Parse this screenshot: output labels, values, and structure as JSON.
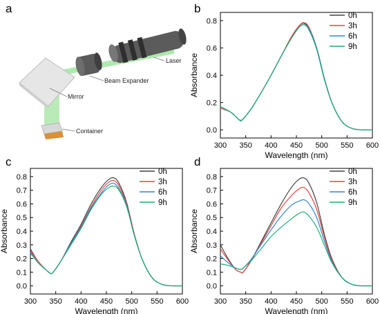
{
  "diagram": {
    "panel_label": "a",
    "labels": {
      "laser": "Laser",
      "beam_expander": "Beam Expander",
      "mirror": "Mirror",
      "container": "Container"
    },
    "colors": {
      "beam": "#9be39b",
      "container_liquid": "#d9903a"
    }
  },
  "chart_data": [
    {
      "panel": "b",
      "type": "line",
      "title": "",
      "xlabel": "Wavelength (nm)",
      "ylabel": "Absorbance",
      "xlim": [
        300,
        600
      ],
      "ylim": [
        -0.06,
        0.86
      ],
      "xticks": [
        300,
        350,
        400,
        450,
        500,
        550,
        600
      ],
      "yticks": [
        0.0,
        0.2,
        0.4,
        0.6,
        0.8
      ],
      "ytick_labels": [
        "0.0",
        "0.2",
        "0.4",
        "0.6",
        "0.8"
      ],
      "grid": false,
      "legend_position": "top-right",
      "series": [
        {
          "name": "0h",
          "color": "#404040",
          "x": [
            300,
            320,
            335,
            340,
            345,
            360,
            380,
            400,
            420,
            440,
            455,
            465,
            475,
            490,
            505,
            520,
            540,
            560,
            580,
            600
          ],
          "y": [
            0.16,
            0.13,
            0.08,
            0.07,
            0.08,
            0.15,
            0.27,
            0.4,
            0.54,
            0.68,
            0.76,
            0.78,
            0.74,
            0.6,
            0.38,
            0.2,
            0.06,
            0.01,
            0.0,
            0.0
          ]
        },
        {
          "name": "3h",
          "color": "#e8413f",
          "x": [
            300,
            320,
            335,
            340,
            345,
            360,
            380,
            400,
            420,
            440,
            455,
            465,
            475,
            490,
            505,
            520,
            540,
            560,
            580,
            600
          ],
          "y": [
            0.16,
            0.13,
            0.08,
            0.07,
            0.08,
            0.15,
            0.27,
            0.4,
            0.54,
            0.68,
            0.76,
            0.785,
            0.75,
            0.6,
            0.38,
            0.2,
            0.06,
            0.01,
            0.0,
            0.0
          ]
        },
        {
          "name": "6h",
          "color": "#2f84d6",
          "x": [
            300,
            320,
            335,
            340,
            345,
            360,
            380,
            400,
            420,
            440,
            455,
            465,
            475,
            490,
            505,
            520,
            540,
            560,
            580,
            600
          ],
          "y": [
            0.17,
            0.13,
            0.08,
            0.07,
            0.08,
            0.15,
            0.27,
            0.4,
            0.54,
            0.67,
            0.75,
            0.77,
            0.74,
            0.6,
            0.38,
            0.2,
            0.06,
            0.01,
            0.0,
            0.0
          ]
        },
        {
          "name": "9h",
          "color": "#1fae74",
          "x": [
            300,
            320,
            335,
            340,
            345,
            360,
            380,
            400,
            420,
            440,
            455,
            465,
            475,
            490,
            505,
            520,
            540,
            560,
            580,
            600
          ],
          "y": [
            0.17,
            0.13,
            0.08,
            0.065,
            0.08,
            0.15,
            0.27,
            0.4,
            0.54,
            0.67,
            0.75,
            0.77,
            0.73,
            0.59,
            0.37,
            0.2,
            0.06,
            0.01,
            0.0,
            0.0
          ]
        }
      ]
    },
    {
      "panel": "c",
      "type": "line",
      "title": "",
      "xlabel": "Wavelength (nm)",
      "ylabel": "Absorbance",
      "xlim": [
        300,
        600
      ],
      "ylim": [
        -0.06,
        0.86
      ],
      "xticks": [
        300,
        350,
        400,
        450,
        500,
        550,
        600
      ],
      "yticks": [
        0.0,
        0.1,
        0.2,
        0.3,
        0.4,
        0.5,
        0.6,
        0.7,
        0.8
      ],
      "ytick_labels": [
        "0.0",
        "0.1",
        "0.2",
        "0.3",
        "0.4",
        "0.5",
        "0.6",
        "0.7",
        "0.8"
      ],
      "grid": false,
      "legend_position": "top-right",
      "series": [
        {
          "name": "0h",
          "color": "#404040",
          "x": [
            300,
            315,
            330,
            340,
            345,
            360,
            380,
            400,
            420,
            440,
            455,
            465,
            475,
            490,
            505,
            520,
            540,
            560,
            580,
            600
          ],
          "y": [
            0.27,
            0.18,
            0.12,
            0.09,
            0.1,
            0.18,
            0.32,
            0.45,
            0.6,
            0.72,
            0.78,
            0.79,
            0.75,
            0.61,
            0.38,
            0.2,
            0.06,
            0.01,
            0.0,
            0.0
          ]
        },
        {
          "name": "3h",
          "color": "#e8413f",
          "x": [
            300,
            315,
            330,
            340,
            345,
            360,
            380,
            400,
            420,
            440,
            455,
            465,
            475,
            490,
            505,
            520,
            540,
            560,
            580,
            600
          ],
          "y": [
            0.26,
            0.18,
            0.12,
            0.09,
            0.1,
            0.18,
            0.31,
            0.44,
            0.58,
            0.7,
            0.76,
            0.77,
            0.73,
            0.6,
            0.38,
            0.2,
            0.06,
            0.01,
            0.0,
            0.0
          ]
        },
        {
          "name": "6h",
          "color": "#2f84d6",
          "x": [
            300,
            315,
            330,
            340,
            345,
            360,
            380,
            400,
            420,
            440,
            455,
            465,
            475,
            490,
            505,
            520,
            540,
            560,
            580,
            600
          ],
          "y": [
            0.25,
            0.17,
            0.12,
            0.09,
            0.1,
            0.18,
            0.31,
            0.43,
            0.57,
            0.68,
            0.74,
            0.75,
            0.71,
            0.59,
            0.37,
            0.2,
            0.06,
            0.01,
            0.0,
            0.0
          ]
        },
        {
          "name": "9h",
          "color": "#1fae74",
          "x": [
            300,
            315,
            330,
            340,
            345,
            360,
            380,
            400,
            420,
            440,
            455,
            465,
            475,
            490,
            505,
            520,
            540,
            560,
            580,
            600
          ],
          "y": [
            0.24,
            0.17,
            0.12,
            0.09,
            0.1,
            0.18,
            0.3,
            0.42,
            0.56,
            0.67,
            0.72,
            0.73,
            0.7,
            0.58,
            0.37,
            0.2,
            0.06,
            0.01,
            0.0,
            0.0
          ]
        }
      ]
    },
    {
      "panel": "d",
      "type": "line",
      "title": "",
      "xlabel": "Wavelength (nm)",
      "ylabel": "Absorbance",
      "xlim": [
        300,
        600
      ],
      "ylim": [
        -0.06,
        0.86
      ],
      "xticks": [
        300,
        350,
        400,
        450,
        500,
        550,
        600
      ],
      "yticks": [
        0.0,
        0.1,
        0.2,
        0.3,
        0.4,
        0.5,
        0.6,
        0.7,
        0.8
      ],
      "ytick_labels": [
        "0.0",
        "0.1",
        "0.2",
        "0.3",
        "0.4",
        "0.5",
        "0.6",
        "0.7",
        "0.8"
      ],
      "grid": false,
      "legend_position": "top-right",
      "series": [
        {
          "name": "0h",
          "color": "#404040",
          "x": [
            300,
            315,
            330,
            340,
            345,
            360,
            380,
            400,
            420,
            440,
            455,
            465,
            475,
            490,
            505,
            520,
            540,
            560,
            580,
            600
          ],
          "y": [
            0.3,
            0.2,
            0.12,
            0.1,
            0.1,
            0.18,
            0.32,
            0.46,
            0.6,
            0.72,
            0.78,
            0.79,
            0.75,
            0.61,
            0.38,
            0.2,
            0.06,
            0.01,
            0.0,
            0.0
          ]
        },
        {
          "name": "3h",
          "color": "#e8413f",
          "x": [
            300,
            315,
            330,
            340,
            345,
            360,
            380,
            400,
            420,
            440,
            455,
            465,
            475,
            490,
            505,
            520,
            540,
            560,
            580,
            600
          ],
          "y": [
            0.27,
            0.19,
            0.12,
            0.1,
            0.1,
            0.18,
            0.31,
            0.44,
            0.57,
            0.66,
            0.71,
            0.72,
            0.68,
            0.56,
            0.36,
            0.19,
            0.06,
            0.01,
            0.0,
            0.0
          ]
        },
        {
          "name": "6h",
          "color": "#2f84d6",
          "x": [
            300,
            315,
            330,
            340,
            345,
            360,
            380,
            400,
            420,
            440,
            455,
            465,
            475,
            490,
            505,
            520,
            540,
            560,
            580,
            600
          ],
          "y": [
            0.22,
            0.17,
            0.13,
            0.12,
            0.13,
            0.19,
            0.3,
            0.41,
            0.51,
            0.59,
            0.62,
            0.63,
            0.6,
            0.5,
            0.33,
            0.18,
            0.06,
            0.01,
            0.0,
            0.0
          ]
        },
        {
          "name": "9h",
          "color": "#1fae74",
          "x": [
            300,
            315,
            330,
            340,
            345,
            360,
            380,
            400,
            420,
            440,
            455,
            465,
            475,
            490,
            505,
            520,
            540,
            560,
            580,
            600
          ],
          "y": [
            0.16,
            0.15,
            0.13,
            0.12,
            0.13,
            0.18,
            0.27,
            0.36,
            0.43,
            0.49,
            0.53,
            0.54,
            0.51,
            0.43,
            0.3,
            0.17,
            0.06,
            0.01,
            0.0,
            0.0
          ]
        }
      ]
    }
  ]
}
